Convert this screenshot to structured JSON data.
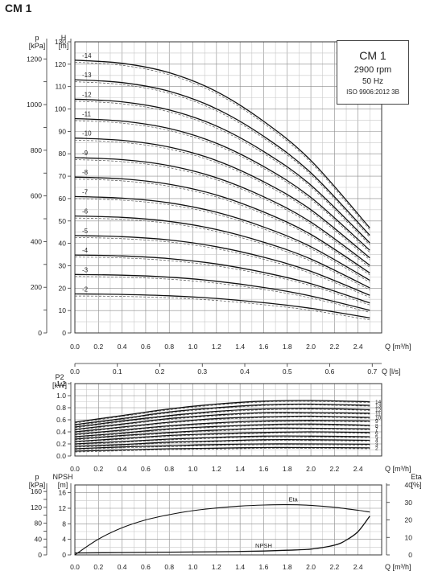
{
  "title": "CM 1",
  "info": {
    "model": "CM 1",
    "speed": "2900 rpm",
    "frequency": "50 Hz",
    "standard": "ISO 9906:2012 3B"
  },
  "chart_data": [
    {
      "type": "line",
      "name": "head",
      "ylabel_left": "p\n[kPa]",
      "ylabel_right_inner": "H\n[m]",
      "xlabel": "Q [m³/h]",
      "xlim": [
        0,
        2.6
      ],
      "ylim": [
        0,
        130
      ],
      "kpa_ticks": [
        0,
        200,
        400,
        600,
        800,
        1000,
        1200
      ],
      "h_ticks": [
        0,
        10,
        20,
        30,
        40,
        50,
        60,
        70,
        80,
        90,
        100,
        110,
        120,
        130
      ],
      "x_ticks": [
        "0.0",
        "0.2",
        "0.4",
        "0.6",
        "0.8",
        "1.0",
        "1.2",
        "1.4",
        "1.6",
        "1.8",
        "2.0",
        "2.2",
        "2.4"
      ],
      "x": [
        0.0,
        0.4,
        0.8,
        1.2,
        1.6,
        2.0,
        2.5
      ],
      "series": [
        {
          "name": "-2",
          "values": [
            17.4,
            17.2,
            16.6,
            15.4,
            13.5,
            11.0,
            6.7
          ]
        },
        {
          "name": "-3",
          "values": [
            26.1,
            25.8,
            24.9,
            23.1,
            20.3,
            16.5,
            10.1
          ]
        },
        {
          "name": "-4",
          "values": [
            34.8,
            34.4,
            33.2,
            30.8,
            27.0,
            22.0,
            13.4
          ]
        },
        {
          "name": "-5",
          "values": [
            43.5,
            43.0,
            41.5,
            38.5,
            33.8,
            27.5,
            16.8
          ]
        },
        {
          "name": "-6",
          "values": [
            52.2,
            51.6,
            49.8,
            46.2,
            40.5,
            33.0,
            20.1
          ]
        },
        {
          "name": "-7",
          "values": [
            60.9,
            60.2,
            58.1,
            53.9,
            47.3,
            38.5,
            23.5
          ]
        },
        {
          "name": "-8",
          "values": [
            69.6,
            68.8,
            66.4,
            61.6,
            54.0,
            44.0,
            26.8
          ]
        },
        {
          "name": "-9",
          "values": [
            78.3,
            77.4,
            74.7,
            69.3,
            60.8,
            49.5,
            30.2
          ]
        },
        {
          "name": "-10",
          "values": [
            87.0,
            86.0,
            83.0,
            77.0,
            67.5,
            55.0,
            33.5
          ]
        },
        {
          "name": "-11",
          "values": [
            95.7,
            94.6,
            91.3,
            84.7,
            74.3,
            60.5,
            36.9
          ]
        },
        {
          "name": "-12",
          "values": [
            104.4,
            103.2,
            99.6,
            92.4,
            81.0,
            66.0,
            40.2
          ]
        },
        {
          "name": "-13",
          "values": [
            113.1,
            111.8,
            107.9,
            100.1,
            87.8,
            71.5,
            43.6
          ]
        },
        {
          "name": "-14",
          "values": [
            121.8,
            120.4,
            116.2,
            107.8,
            94.5,
            77.0,
            46.9
          ]
        }
      ]
    },
    {
      "type": "line",
      "name": "power",
      "ylabel": "P2\n[kW]",
      "xlabel": "Q [m³/h]",
      "xlabel_top": "Q [l/s]",
      "xlim": [
        0,
        2.6
      ],
      "ylim": [
        0,
        1.2
      ],
      "y_ticks": [
        "0.0",
        "0.2",
        "0.4",
        "0.6",
        "0.8",
        "1.0",
        "1.2"
      ],
      "top_ticks": [
        "0.0",
        "0.1",
        "0.2",
        "0.3",
        "0.4",
        "0.5",
        "0.6",
        "0.7"
      ],
      "x_ticks": [
        "0.0",
        "0.2",
        "0.4",
        "0.6",
        "0.8",
        "1.0",
        "1.2",
        "1.4",
        "1.6",
        "1.8",
        "2.0",
        "2.2",
        "2.4"
      ],
      "x": [
        0.0,
        0.4,
        0.8,
        1.2,
        1.6,
        2.0,
        2.5
      ],
      "series": [
        {
          "name": "2",
          "values": [
            0.08,
            0.1,
            0.12,
            0.13,
            0.14,
            0.14,
            0.135
          ]
        },
        {
          "name": "3",
          "values": [
            0.12,
            0.15,
            0.17,
            0.19,
            0.2,
            0.2,
            0.195
          ]
        },
        {
          "name": "4",
          "values": [
            0.16,
            0.19,
            0.23,
            0.25,
            0.27,
            0.27,
            0.26
          ]
        },
        {
          "name": "5",
          "values": [
            0.2,
            0.24,
            0.28,
            0.31,
            0.33,
            0.33,
            0.32
          ]
        },
        {
          "name": "6",
          "values": [
            0.24,
            0.29,
            0.34,
            0.37,
            0.39,
            0.4,
            0.39
          ]
        },
        {
          "name": "7",
          "values": [
            0.28,
            0.34,
            0.39,
            0.43,
            0.46,
            0.46,
            0.45
          ]
        },
        {
          "name": "8",
          "values": [
            0.32,
            0.38,
            0.45,
            0.49,
            0.52,
            0.53,
            0.51
          ]
        },
        {
          "name": "9",
          "values": [
            0.36,
            0.43,
            0.5,
            0.55,
            0.58,
            0.59,
            0.58
          ]
        },
        {
          "name": "10",
          "values": [
            0.4,
            0.48,
            0.56,
            0.62,
            0.65,
            0.66,
            0.64
          ]
        },
        {
          "name": "11",
          "values": [
            0.44,
            0.53,
            0.62,
            0.68,
            0.72,
            0.72,
            0.71
          ]
        },
        {
          "name": "12",
          "values": [
            0.48,
            0.58,
            0.67,
            0.74,
            0.78,
            0.79,
            0.77
          ]
        },
        {
          "name": "13",
          "values": [
            0.52,
            0.62,
            0.73,
            0.8,
            0.85,
            0.86,
            0.84
          ]
        },
        {
          "name": "14",
          "values": [
            0.56,
            0.67,
            0.78,
            0.86,
            0.91,
            0.92,
            0.9
          ]
        }
      ]
    },
    {
      "type": "line",
      "name": "npsh-eta",
      "ylabel_left": "p\n[kPa]",
      "ylabel_right_inner": "NPSH\n[m]",
      "ylabel_right": "Eta\n[%]",
      "xlabel": "Q [m³/h]",
      "xlim": [
        0,
        2.6
      ],
      "npsh_ylim": [
        0,
        18
      ],
      "eta_ylim": [
        0,
        40
      ],
      "kpa_ticks": [
        0,
        40,
        80,
        120,
        160
      ],
      "npsh_ticks": [
        0,
        4,
        8,
        12,
        16
      ],
      "eta_ticks": [
        0,
        10,
        20,
        30,
        40
      ],
      "x_ticks": [
        "0.0",
        "0.2",
        "0.4",
        "0.6",
        "0.8",
        "1.0",
        "1.2",
        "1.4",
        "1.6",
        "1.8",
        "2.0",
        "2.2",
        "2.4"
      ],
      "series": [
        {
          "name": "Eta",
          "x": [
            0.0,
            0.2,
            0.4,
            0.6,
            0.8,
            1.0,
            1.2,
            1.4,
            1.6,
            1.8,
            2.0,
            2.2,
            2.4,
            2.5
          ],
          "values": [
            0,
            9,
            15.5,
            20,
            23,
            25.3,
            26.8,
            27.9,
            28.5,
            28.7,
            28.3,
            27.2,
            25.5,
            24.5
          ]
        },
        {
          "name": "NPSH",
          "x": [
            0.0,
            0.4,
            0.8,
            1.2,
            1.6,
            1.8,
            2.0,
            2.2,
            2.3,
            2.4,
            2.5
          ],
          "values": [
            0.5,
            0.6,
            0.7,
            0.8,
            1.0,
            1.2,
            1.5,
            2.5,
            3.8,
            6.0,
            10.0
          ]
        }
      ]
    }
  ]
}
